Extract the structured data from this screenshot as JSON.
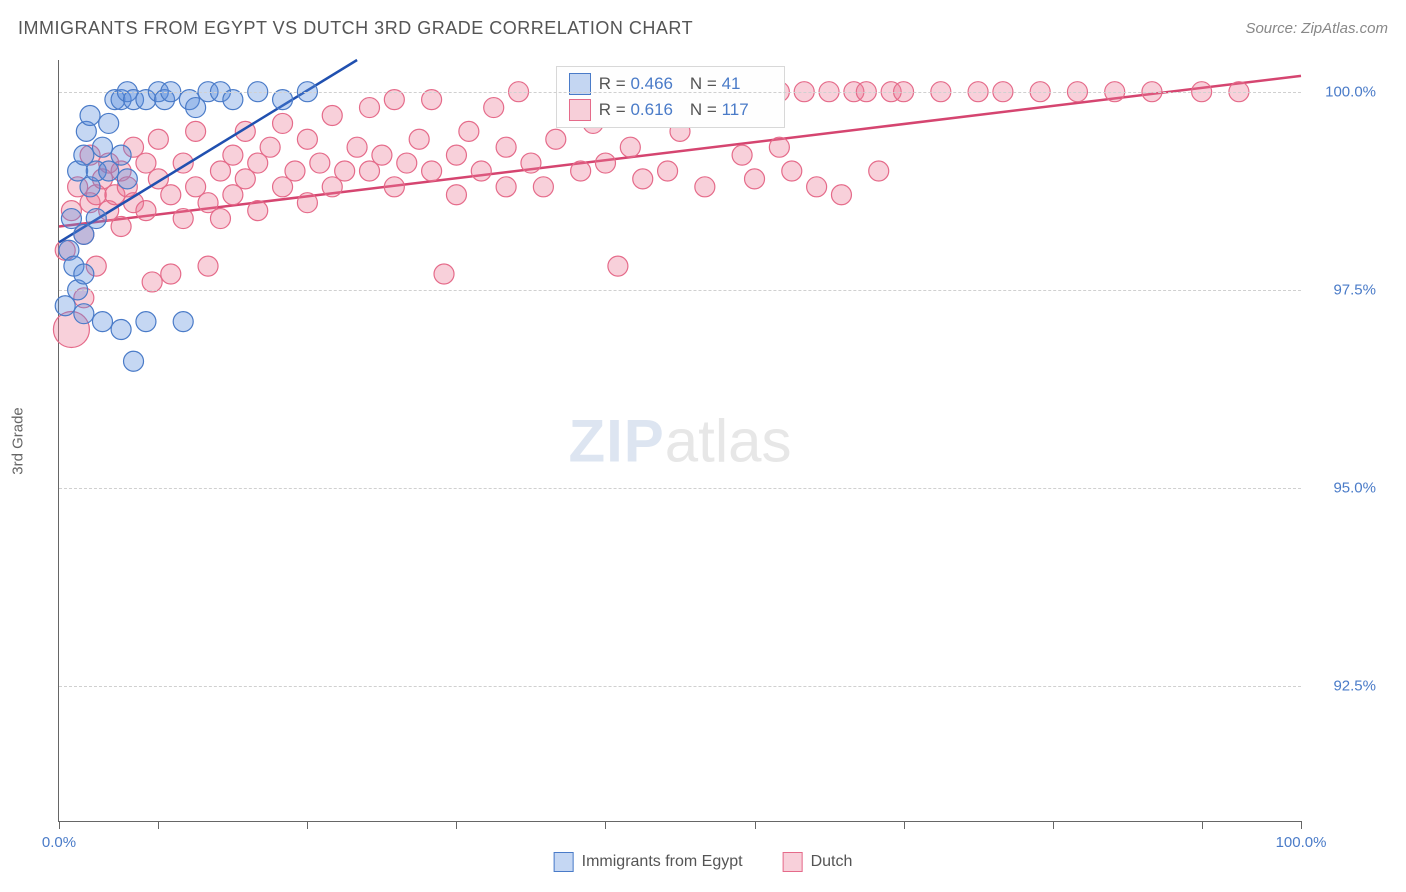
{
  "title": "IMMIGRANTS FROM EGYPT VS DUTCH 3RD GRADE CORRELATION CHART",
  "source": "Source: ZipAtlas.com",
  "ylabel": "3rd Grade",
  "watermark": {
    "zip": "ZIP",
    "atlas": "atlas"
  },
  "chart": {
    "type": "scatter",
    "xlim": [
      0,
      100
    ],
    "ylim": [
      90.8,
      100.4
    ],
    "yticks": [
      {
        "v": 92.5,
        "label": "92.5%"
      },
      {
        "v": 95.0,
        "label": "95.0%"
      },
      {
        "v": 97.5,
        "label": "97.5%"
      },
      {
        "v": 100.0,
        "label": "100.0%"
      }
    ],
    "xticks_major": [
      0,
      100
    ],
    "xtick_labels": {
      "0": "0.0%",
      "100": "100.0%"
    },
    "xticks_minor": [
      8,
      20,
      32,
      44,
      56,
      68,
      80,
      92
    ],
    "background_color": "#ffffff",
    "grid_color": "#d0d0d0",
    "marker_radius": 10,
    "marker_opacity": 0.55,
    "series": [
      {
        "name": "Immigrants from Egypt",
        "color_fill": "rgba(90,140,220,0.35)",
        "color_stroke": "#4a7bc8",
        "R": "0.466",
        "N": "41",
        "trend": {
          "x1": 0,
          "y1": 98.1,
          "x2": 24,
          "y2": 100.4,
          "color": "#2050b0",
          "width": 2.5
        },
        "points": [
          {
            "x": 0.5,
            "y": 97.3
          },
          {
            "x": 0.8,
            "y": 98.0
          },
          {
            "x": 1.0,
            "y": 98.4
          },
          {
            "x": 1.2,
            "y": 97.8
          },
          {
            "x": 1.5,
            "y": 99.0
          },
          {
            "x": 1.5,
            "y": 97.5
          },
          {
            "x": 2.0,
            "y": 99.2
          },
          {
            "x": 2.0,
            "y": 98.2
          },
          {
            "x": 2.0,
            "y": 97.7
          },
          {
            "x": 2.0,
            "y": 97.2
          },
          {
            "x": 2.2,
            "y": 99.5
          },
          {
            "x": 2.5,
            "y": 98.8
          },
          {
            "x": 2.5,
            "y": 99.7
          },
          {
            "x": 3.0,
            "y": 99.0
          },
          {
            "x": 3.0,
            "y": 98.4
          },
          {
            "x": 3.5,
            "y": 99.3
          },
          {
            "x": 3.5,
            "y": 97.1
          },
          {
            "x": 4.0,
            "y": 99.6
          },
          {
            "x": 4.0,
            "y": 99.0
          },
          {
            "x": 4.5,
            "y": 99.9
          },
          {
            "x": 5.0,
            "y": 97.0
          },
          {
            "x": 5.0,
            "y": 99.9
          },
          {
            "x": 5.0,
            "y": 99.2
          },
          {
            "x": 5.5,
            "y": 100.0
          },
          {
            "x": 5.5,
            "y": 98.9
          },
          {
            "x": 6.0,
            "y": 99.9
          },
          {
            "x": 6.0,
            "y": 96.6
          },
          {
            "x": 7.0,
            "y": 99.9
          },
          {
            "x": 7.0,
            "y": 97.1
          },
          {
            "x": 8.0,
            "y": 100.0
          },
          {
            "x": 8.5,
            "y": 99.9
          },
          {
            "x": 9.0,
            "y": 100.0
          },
          {
            "x": 10.0,
            "y": 97.1
          },
          {
            "x": 10.5,
            "y": 99.9
          },
          {
            "x": 11.0,
            "y": 99.8
          },
          {
            "x": 12.0,
            "y": 100.0
          },
          {
            "x": 13.0,
            "y": 100.0
          },
          {
            "x": 14.0,
            "y": 99.9
          },
          {
            "x": 16.0,
            "y": 100.0
          },
          {
            "x": 18.0,
            "y": 99.9
          },
          {
            "x": 20.0,
            "y": 100.0
          }
        ]
      },
      {
        "name": "Dutch",
        "color_fill": "rgba(235,120,150,0.35)",
        "color_stroke": "#e56b8a",
        "R": "0.616",
        "N": "117",
        "trend": {
          "x1": 0,
          "y1": 98.3,
          "x2": 100,
          "y2": 100.2,
          "color": "#d54570",
          "width": 2.5
        },
        "points": [
          {
            "x": 0.5,
            "y": 98.0
          },
          {
            "x": 1.0,
            "y": 97.0,
            "r": 18
          },
          {
            "x": 1.0,
            "y": 98.5
          },
          {
            "x": 1.5,
            "y": 98.8
          },
          {
            "x": 2.0,
            "y": 98.2
          },
          {
            "x": 2.0,
            "y": 97.4
          },
          {
            "x": 2.5,
            "y": 98.6
          },
          {
            "x": 2.5,
            "y": 99.2
          },
          {
            "x": 3.0,
            "y": 98.7
          },
          {
            "x": 3.0,
            "y": 97.8
          },
          {
            "x": 3.5,
            "y": 98.9
          },
          {
            "x": 4.0,
            "y": 98.5
          },
          {
            "x": 4.0,
            "y": 99.1
          },
          {
            "x": 4.5,
            "y": 98.7
          },
          {
            "x": 5.0,
            "y": 98.3
          },
          {
            "x": 5.0,
            "y": 99.0
          },
          {
            "x": 5.5,
            "y": 98.8
          },
          {
            "x": 6.0,
            "y": 98.6
          },
          {
            "x": 6.0,
            "y": 99.3
          },
          {
            "x": 7.0,
            "y": 98.5
          },
          {
            "x": 7.0,
            "y": 99.1
          },
          {
            "x": 7.5,
            "y": 97.6
          },
          {
            "x": 8.0,
            "y": 98.9
          },
          {
            "x": 8.0,
            "y": 99.4
          },
          {
            "x": 9.0,
            "y": 98.7
          },
          {
            "x": 9.0,
            "y": 97.7
          },
          {
            "x": 10.0,
            "y": 99.1
          },
          {
            "x": 10.0,
            "y": 98.4
          },
          {
            "x": 11.0,
            "y": 98.8
          },
          {
            "x": 11.0,
            "y": 99.5
          },
          {
            "x": 12.0,
            "y": 98.6
          },
          {
            "x": 12.0,
            "y": 97.8
          },
          {
            "x": 13.0,
            "y": 99.0
          },
          {
            "x": 13.0,
            "y": 98.4
          },
          {
            "x": 14.0,
            "y": 99.2
          },
          {
            "x": 14.0,
            "y": 98.7
          },
          {
            "x": 15.0,
            "y": 98.9
          },
          {
            "x": 15.0,
            "y": 99.5
          },
          {
            "x": 16.0,
            "y": 98.5
          },
          {
            "x": 16.0,
            "y": 99.1
          },
          {
            "x": 17.0,
            "y": 99.3
          },
          {
            "x": 18.0,
            "y": 98.8
          },
          {
            "x": 18.0,
            "y": 99.6
          },
          {
            "x": 19.0,
            "y": 99.0
          },
          {
            "x": 20.0,
            "y": 98.6
          },
          {
            "x": 20.0,
            "y": 99.4
          },
          {
            "x": 21.0,
            "y": 99.1
          },
          {
            "x": 22.0,
            "y": 98.8
          },
          {
            "x": 22.0,
            "y": 99.7
          },
          {
            "x": 23.0,
            "y": 99.0
          },
          {
            "x": 24.0,
            "y": 99.3
          },
          {
            "x": 25.0,
            "y": 99.8
          },
          {
            "x": 25.0,
            "y": 99.0
          },
          {
            "x": 26.0,
            "y": 99.2
          },
          {
            "x": 27.0,
            "y": 98.8
          },
          {
            "x": 27.0,
            "y": 99.9
          },
          {
            "x": 28.0,
            "y": 99.1
          },
          {
            "x": 29.0,
            "y": 99.4
          },
          {
            "x": 30.0,
            "y": 99.0
          },
          {
            "x": 30.0,
            "y": 99.9
          },
          {
            "x": 31.0,
            "y": 97.7
          },
          {
            "x": 32.0,
            "y": 99.2
          },
          {
            "x": 32.0,
            "y": 98.7
          },
          {
            "x": 33.0,
            "y": 99.5
          },
          {
            "x": 34.0,
            "y": 99.0
          },
          {
            "x": 35.0,
            "y": 99.8
          },
          {
            "x": 36.0,
            "y": 98.8
          },
          {
            "x": 36.0,
            "y": 99.3
          },
          {
            "x": 37.0,
            "y": 100.0
          },
          {
            "x": 38.0,
            "y": 99.1
          },
          {
            "x": 39.0,
            "y": 98.8
          },
          {
            "x": 40.0,
            "y": 99.4
          },
          {
            "x": 41.0,
            "y": 100.0
          },
          {
            "x": 42.0,
            "y": 99.0
          },
          {
            "x": 43.0,
            "y": 99.6
          },
          {
            "x": 44.0,
            "y": 99.1
          },
          {
            "x": 45.0,
            "y": 97.8
          },
          {
            "x": 45.0,
            "y": 100.0
          },
          {
            "x": 46.0,
            "y": 99.3
          },
          {
            "x": 47.0,
            "y": 98.9
          },
          {
            "x": 48.0,
            "y": 100.0
          },
          {
            "x": 49.0,
            "y": 99.0
          },
          {
            "x": 50.0,
            "y": 99.5
          },
          {
            "x": 51.0,
            "y": 100.0
          },
          {
            "x": 52.0,
            "y": 98.8
          },
          {
            "x": 53.0,
            "y": 99.8
          },
          {
            "x": 54.0,
            "y": 100.0
          },
          {
            "x": 55.0,
            "y": 99.2
          },
          {
            "x": 55.0,
            "y": 100.0
          },
          {
            "x": 56.0,
            "y": 98.9
          },
          {
            "x": 57.0,
            "y": 100.0
          },
          {
            "x": 58.0,
            "y": 99.3
          },
          {
            "x": 58.0,
            "y": 100.0
          },
          {
            "x": 59.0,
            "y": 99.0
          },
          {
            "x": 60.0,
            "y": 100.0
          },
          {
            "x": 61.0,
            "y": 98.8
          },
          {
            "x": 62.0,
            "y": 100.0
          },
          {
            "x": 63.0,
            "y": 98.7
          },
          {
            "x": 64.0,
            "y": 100.0
          },
          {
            "x": 65.0,
            "y": 100.0
          },
          {
            "x": 66.0,
            "y": 99.0
          },
          {
            "x": 67.0,
            "y": 100.0
          },
          {
            "x": 68.0,
            "y": 100.0
          },
          {
            "x": 71.0,
            "y": 100.0
          },
          {
            "x": 74.0,
            "y": 100.0
          },
          {
            "x": 76.0,
            "y": 100.0
          },
          {
            "x": 79.0,
            "y": 100.0
          },
          {
            "x": 82.0,
            "y": 100.0
          },
          {
            "x": 85.0,
            "y": 100.0
          },
          {
            "x": 88.0,
            "y": 100.0
          },
          {
            "x": 92.0,
            "y": 100.0
          },
          {
            "x": 95.0,
            "y": 100.0
          }
        ]
      }
    ]
  },
  "legend": [
    {
      "label": "Immigrants from Egypt",
      "fill": "rgba(90,140,220,0.35)",
      "stroke": "#4a7bc8"
    },
    {
      "label": "Dutch",
      "fill": "rgba(235,120,150,0.35)",
      "stroke": "#e56b8a"
    }
  ]
}
